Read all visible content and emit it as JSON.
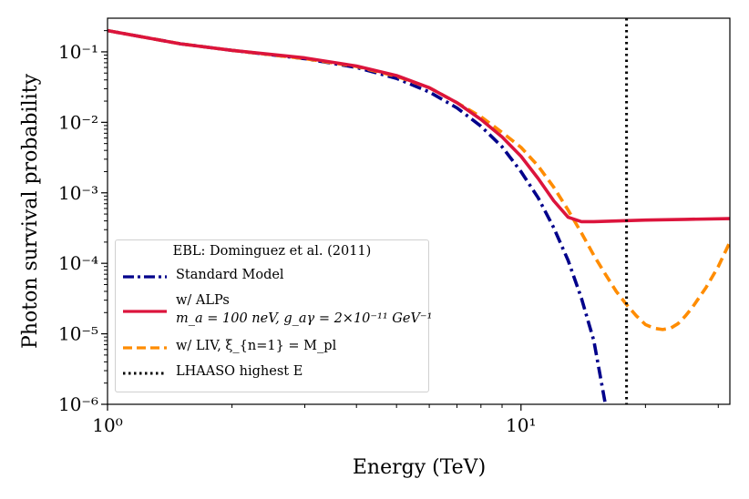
{
  "chart_data": {
    "type": "line",
    "xlabel": "Energy (TeV)",
    "ylabel": "Photon survival probability",
    "xscale": "log",
    "yscale": "log",
    "xlim": [
      1,
      32
    ],
    "ylim": [
      1e-06,
      0.3
    ],
    "x_ticks": [
      {
        "value": 1,
        "label": "10⁰"
      },
      {
        "value": 10,
        "label": "10¹"
      }
    ],
    "y_ticks": [
      {
        "value": 1e-06,
        "label": "10⁻⁶"
      },
      {
        "value": 1e-05,
        "label": "10⁻⁵"
      },
      {
        "value": 0.0001,
        "label": "10⁻⁴"
      },
      {
        "value": 0.001,
        "label": "10⁻³"
      },
      {
        "value": 0.01,
        "label": "10⁻²"
      },
      {
        "value": 0.1,
        "label": "10⁻¹"
      }
    ],
    "legend_title": "EBL: Dominguez et al. (2011)",
    "legend_position": "lower-left",
    "series": [
      {
        "name": "Standard Model",
        "color": "#00008b",
        "style": "dashdot",
        "x": [
          1,
          1.5,
          2,
          3,
          4,
          5,
          6,
          7,
          8,
          9,
          10,
          11,
          12,
          13,
          14,
          15,
          16
        ],
        "y": [
          0.2,
          0.13,
          0.105,
          0.08,
          0.06,
          0.042,
          0.027,
          0.016,
          0.0088,
          0.0045,
          0.002,
          0.00085,
          0.00032,
          0.00011,
          3.2e-05,
          8e-06,
          1e-06
        ]
      },
      {
        "name": "w/ ALPs",
        "subtitle": "m_a = 100 neV, g_aγ = 2×10⁻¹¹ GeV⁻¹",
        "color": "#dc143c",
        "style": "solid",
        "x": [
          1,
          1.5,
          2,
          3,
          4,
          5,
          6,
          7,
          8,
          9,
          10,
          11,
          12,
          13,
          14,
          15,
          20,
          25,
          32
        ],
        "y": [
          0.2,
          0.13,
          0.105,
          0.082,
          0.063,
          0.046,
          0.031,
          0.019,
          0.011,
          0.0062,
          0.0033,
          0.0016,
          0.00077,
          0.00045,
          0.00039,
          0.00039,
          0.00041,
          0.00042,
          0.00043
        ]
      },
      {
        "name": "w/ LIV, ξ_{n=1} = M_pl",
        "color": "#ff8c00",
        "style": "dashed",
        "x": [
          1,
          1.5,
          2,
          3,
          4,
          5,
          6,
          7,
          8,
          9,
          10,
          11,
          12,
          13,
          14,
          15,
          16,
          17,
          18,
          19,
          20,
          21,
          22,
          23,
          24,
          25,
          26,
          28,
          30,
          32
        ],
        "y": [
          0.2,
          0.13,
          0.105,
          0.08,
          0.062,
          0.045,
          0.031,
          0.019,
          0.012,
          0.0072,
          0.0044,
          0.0024,
          0.0012,
          0.00057,
          0.00027,
          0.00013,
          7e-05,
          4e-05,
          2.6e-05,
          1.8e-05,
          1.35e-05,
          1.2e-05,
          1.15e-05,
          1.2e-05,
          1.4e-05,
          1.8e-05,
          2.4e-05,
          4.5e-05,
          9e-05,
          0.0002
        ]
      },
      {
        "name": "LHAASO highest E",
        "color": "#000000",
        "style": "dotted",
        "vertical_x": 18
      }
    ]
  }
}
